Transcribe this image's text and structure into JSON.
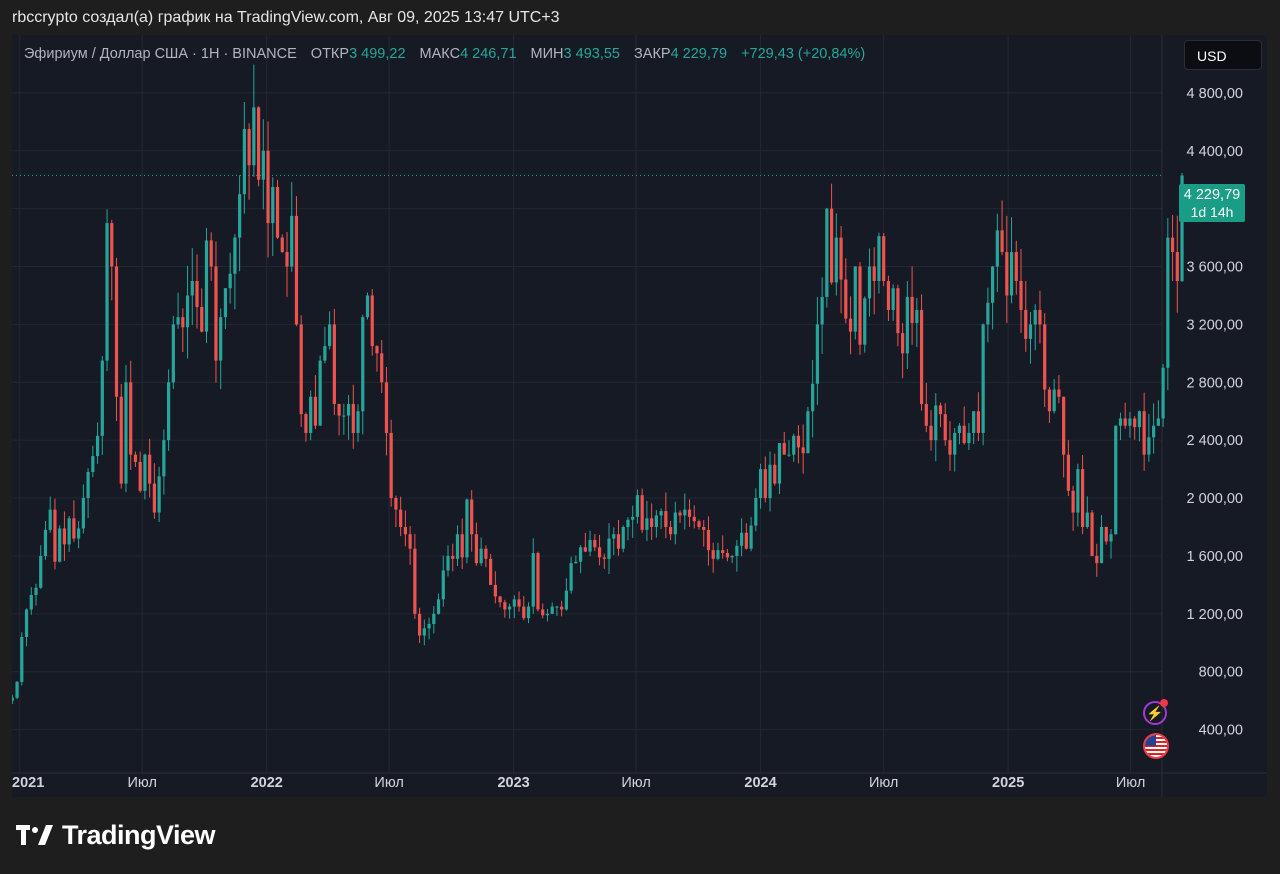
{
  "caption": "rbccrypto создал(а) график на TradingView.com, Авг 09, 2025 13:47 UTC+3",
  "legend": {
    "symbol": "Эфириум / Доллар США · 1Н · BINANCE",
    "open_label": "ОТКР",
    "open": "3 499,22",
    "high_label": "МАКС",
    "high": "4 246,71",
    "low_label": "МИН",
    "low": "3 493,55",
    "close_label": "ЗАКР",
    "close": "4 229,79",
    "change": "+729,43 (+20,84%)"
  },
  "currency_button": "USD",
  "last_price": {
    "price": "4 229,79",
    "countdown": "1d 14h"
  },
  "brand": "TradingView",
  "icons": [
    "bolt-icon",
    "us-flag-icon",
    "tradingview-logo-icon"
  ],
  "colors": {
    "up": "#26a69a",
    "down": "#ef5350",
    "background": "#161a25",
    "grid": "#232733",
    "badge": "#1a9d86"
  },
  "chart_data": {
    "type": "candlestick",
    "interval": "1W",
    "ylim": [
      100,
      5200
    ],
    "y_ticks": [
      "4 800,00",
      "4 400,00",
      "4 000,00",
      "3 600,00",
      "3 200,00",
      "2 800,00",
      "2 400,00",
      "2 000,00",
      "1 600,00",
      "1 200,00",
      "800,00",
      "400,00"
    ],
    "y_tick_values": [
      4800,
      4400,
      4000,
      3600,
      3200,
      2800,
      2400,
      2000,
      1600,
      1200,
      800,
      400
    ],
    "x_ticks": [
      {
        "label": "2021",
        "date": "2021-01-01",
        "bold": true
      },
      {
        "label": "Июл",
        "date": "2021-07-01",
        "bold": false
      },
      {
        "label": "2022",
        "date": "2022-01-01",
        "bold": true
      },
      {
        "label": "Июл",
        "date": "2022-07-01",
        "bold": false
      },
      {
        "label": "2023",
        "date": "2023-01-01",
        "bold": true
      },
      {
        "label": "Июл",
        "date": "2023-07-01",
        "bold": false
      },
      {
        "label": "2024",
        "date": "2024-01-01",
        "bold": true
      },
      {
        "label": "Июл",
        "date": "2024-07-01",
        "bold": false
      },
      {
        "label": "2025",
        "date": "2025-01-01",
        "bold": true
      },
      {
        "label": "Июл",
        "date": "2025-07-01",
        "bold": false
      }
    ],
    "last_price_value": 4229.79,
    "first_week": "2020-12-21",
    "closes": [
      620,
      730,
      1040,
      1230,
      1330,
      1380,
      1600,
      1780,
      1920,
      1560,
      1790,
      1680,
      1860,
      1720,
      1790,
      2000,
      2180,
      2290,
      2430,
      2950,
      3900,
      3600,
      2700,
      2100,
      2800,
      2300,
      2250,
      2050,
      2300,
      2100,
      1900,
      2150,
      2400,
      2800,
      3200,
      3250,
      3180,
      3400,
      3500,
      3320,
      3150,
      3780,
      3600,
      2950,
      3250,
      3450,
      3550,
      3800,
      4100,
      4550,
      4300,
      4700,
      4200,
      4400,
      3900,
      4150,
      3800,
      3700,
      3600,
      3950,
      3200,
      2580,
      2450,
      2700,
      2500,
      2950,
      3050,
      3200,
      2650,
      2570,
      2570,
      2650,
      2450,
      2600,
      3250,
      3400,
      3050,
      3000,
      2800,
      2450,
      2000,
      1920,
      1800,
      1750,
      1650,
      1200,
      1050,
      1100,
      1130,
      1200,
      1300,
      1500,
      1600,
      1580,
      1750,
      1590,
      1990,
      1750,
      1550,
      1650,
      1580,
      1400,
      1320,
      1280,
      1230,
      1250,
      1300,
      1250,
      1170,
      1250,
      1620,
      1230,
      1190,
      1200,
      1250,
      1250,
      1230,
      1360,
      1550,
      1560,
      1660,
      1630,
      1710,
      1660,
      1590,
      1580,
      1720,
      1750,
      1650,
      1800,
      1850,
      1870,
      2020,
      1780,
      1860,
      1800,
      1880,
      1910,
      1800,
      1750,
      1900,
      1880,
      1920,
      1870,
      1840,
      1800,
      1780,
      1640,
      1580,
      1640,
      1620,
      1590,
      1600,
      1670,
      1760,
      1650,
      1810,
      2000,
      2200,
      2000,
      2230,
      2100,
      2380,
      2300,
      2300,
      2430,
      2350,
      2310,
      2600,
      2790,
      3200,
      3390,
      4000,
      3490,
      3800,
      3510,
      3240,
      3150,
      3600,
      3060,
      3380,
      3600,
      3500,
      3810,
      3500,
      3300,
      3450,
      3140,
      3000,
      3390,
      3210,
      3300,
      2650,
      2500,
      2400,
      2640,
      2580,
      2400,
      2300,
      2450,
      2500,
      2380,
      2450,
      2600,
      2450,
      3200,
      3350,
      3600,
      3850,
      3700,
      3400,
      3700,
      3500,
      3300,
      3100,
      3200,
      3300,
      3200,
      2750,
      2600,
      2750,
      2700,
      2300,
      2050,
      1900,
      2200,
      1800,
      1900,
      1600,
      1550,
      1800,
      1700,
      1750,
      2500,
      2550,
      2500,
      2550,
      2490,
      2600,
      2300,
      2420,
      2500,
      2550,
      2900,
      3800,
      3700,
      3500,
      4229
    ]
  }
}
